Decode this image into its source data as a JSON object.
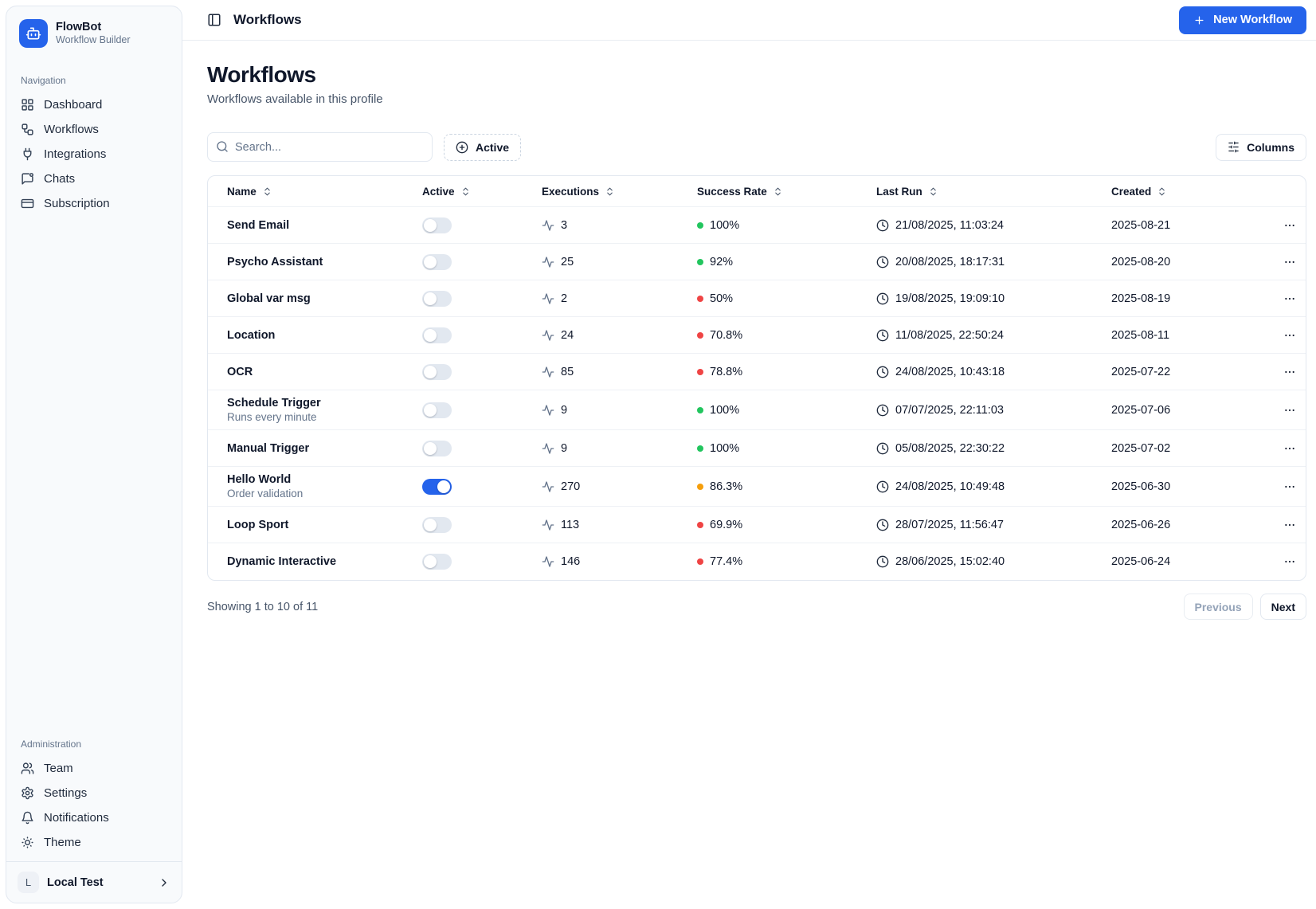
{
  "app": {
    "name": "FlowBot",
    "tagline": "Workflow Builder"
  },
  "colors": {
    "accent": "#2563eb",
    "green": "#22c55e",
    "red": "#ef4444",
    "amber": "#f59e0b"
  },
  "sidebar": {
    "sections": [
      {
        "label": "Navigation",
        "items": [
          {
            "label": "Dashboard",
            "icon": "dashboard-icon"
          },
          {
            "label": "Workflows",
            "icon": "workflows-icon"
          },
          {
            "label": "Integrations",
            "icon": "integrations-icon"
          },
          {
            "label": "Chats",
            "icon": "chats-icon"
          },
          {
            "label": "Subscription",
            "icon": "subscription-icon"
          }
        ]
      },
      {
        "label": "Administration",
        "items": [
          {
            "label": "Team",
            "icon": "team-icon"
          },
          {
            "label": "Settings",
            "icon": "settings-icon"
          },
          {
            "label": "Notifications",
            "icon": "notifications-icon"
          },
          {
            "label": "Theme",
            "icon": "theme-icon"
          }
        ]
      }
    ],
    "footer": {
      "initial": "L",
      "name": "Local Test"
    }
  },
  "topbar": {
    "title": "Workflows",
    "new_workflow_label": "New Workflow"
  },
  "page": {
    "title": "Workflows",
    "subtitle": "Workflows available in this profile"
  },
  "toolbar": {
    "search_placeholder": "Search...",
    "active_filter_label": "Active",
    "columns_label": "Columns"
  },
  "table": {
    "columns": [
      "Name",
      "Active",
      "Executions",
      "Success Rate",
      "Last Run",
      "Created"
    ],
    "rows": [
      {
        "name": "Send Email",
        "description": "",
        "active": false,
        "executions": "3",
        "success_rate": "100%",
        "success_color": "green",
        "last_run": "21/08/2025, 11:03:24",
        "created": "2025-08-21"
      },
      {
        "name": "Psycho Assistant",
        "description": "",
        "active": false,
        "executions": "25",
        "success_rate": "92%",
        "success_color": "green",
        "last_run": "20/08/2025, 18:17:31",
        "created": "2025-08-20"
      },
      {
        "name": "Global var msg",
        "description": "",
        "active": false,
        "executions": "2",
        "success_rate": "50%",
        "success_color": "red",
        "last_run": "19/08/2025, 19:09:10",
        "created": "2025-08-19"
      },
      {
        "name": "Location",
        "description": "",
        "active": false,
        "executions": "24",
        "success_rate": "70.8%",
        "success_color": "red",
        "last_run": "11/08/2025, 22:50:24",
        "created": "2025-08-11"
      },
      {
        "name": "OCR",
        "description": "",
        "active": false,
        "executions": "85",
        "success_rate": "78.8%",
        "success_color": "red",
        "last_run": "24/08/2025, 10:43:18",
        "created": "2025-07-22"
      },
      {
        "name": "Schedule Trigger",
        "description": "Runs every minute",
        "active": false,
        "executions": "9",
        "success_rate": "100%",
        "success_color": "green",
        "last_run": "07/07/2025, 22:11:03",
        "created": "2025-07-06"
      },
      {
        "name": "Manual Trigger",
        "description": "",
        "active": false,
        "executions": "9",
        "success_rate": "100%",
        "success_color": "green",
        "last_run": "05/08/2025, 22:30:22",
        "created": "2025-07-02"
      },
      {
        "name": "Hello World",
        "description": "Order validation",
        "active": true,
        "executions": "270",
        "success_rate": "86.3%",
        "success_color": "amber",
        "last_run": "24/08/2025, 10:49:48",
        "created": "2025-06-30"
      },
      {
        "name": "Loop Sport",
        "description": "",
        "active": false,
        "executions": "113",
        "success_rate": "69.9%",
        "success_color": "red",
        "last_run": "28/07/2025, 11:56:47",
        "created": "2025-06-26"
      },
      {
        "name": "Dynamic Interactive",
        "description": "",
        "active": false,
        "executions": "146",
        "success_rate": "77.4%",
        "success_color": "red",
        "last_run": "28/06/2025, 15:02:40",
        "created": "2025-06-24"
      }
    ]
  },
  "pagination": {
    "summary": "Showing 1 to 10 of 11",
    "previous_label": "Previous",
    "next_label": "Next"
  }
}
